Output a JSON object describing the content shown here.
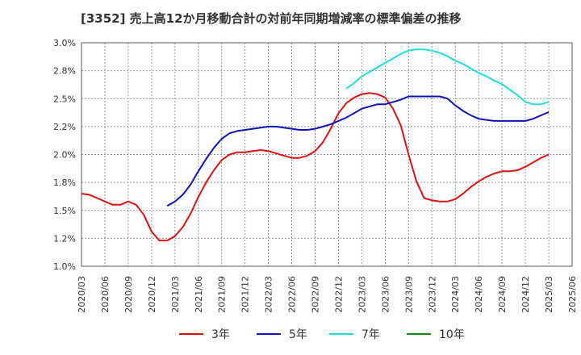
{
  "chart_data": {
    "type": "line",
    "title": "[3352]  売上高12か月移動合計の対前年同期増減率の標準偏差の推移",
    "xlabel": "",
    "ylabel": "",
    "ylim": [
      0.01,
      0.03
    ],
    "y_ticks": [
      {
        "value": 0.03,
        "label": "3.0%"
      },
      {
        "value": 0.0275,
        "label": "2.8%"
      },
      {
        "value": 0.025,
        "label": "2.5%"
      },
      {
        "value": 0.0225,
        "label": "2.2%"
      },
      {
        "value": 0.02,
        "label": "2.0%"
      },
      {
        "value": 0.0175,
        "label": "1.8%"
      },
      {
        "value": 0.015,
        "label": "1.5%"
      },
      {
        "value": 0.0125,
        "label": "1.2%"
      },
      {
        "value": 0.01,
        "label": "1.0%"
      }
    ],
    "x_ticks": [
      "2020/03",
      "2020/06",
      "2020/09",
      "2020/12",
      "2021/03",
      "2021/06",
      "2021/09",
      "2021/12",
      "2022/03",
      "2022/06",
      "2022/09",
      "2022/12",
      "2023/03",
      "2023/06",
      "2023/09",
      "2023/12",
      "2024/03",
      "2024/06",
      "2024/09",
      "2024/12",
      "2025/03",
      "2025/06"
    ],
    "x_range": [
      "2020/03",
      "2025/06"
    ],
    "grid": true,
    "legend_position": "bottom",
    "series": [
      {
        "name": "3年",
        "color": "#dd1111",
        "points": [
          [
            "2020/03",
            0.0165
          ],
          [
            "2020/04",
            0.0164
          ],
          [
            "2020/05",
            0.0161
          ],
          [
            "2020/06",
            0.0158
          ],
          [
            "2020/07",
            0.0155
          ],
          [
            "2020/08",
            0.0155
          ],
          [
            "2020/09",
            0.0158
          ],
          [
            "2020/10",
            0.0155
          ],
          [
            "2020/11",
            0.0146
          ],
          [
            "2020/12",
            0.0131
          ],
          [
            "2021/01",
            0.0123
          ],
          [
            "2021/02",
            0.0123
          ],
          [
            "2021/03",
            0.0127
          ],
          [
            "2021/04",
            0.0135
          ],
          [
            "2021/05",
            0.0147
          ],
          [
            "2021/06",
            0.0162
          ],
          [
            "2021/07",
            0.0175
          ],
          [
            "2021/08",
            0.0186
          ],
          [
            "2021/09",
            0.0195
          ],
          [
            "2021/10",
            0.02
          ],
          [
            "2021/11",
            0.0202
          ],
          [
            "2021/12",
            0.0202
          ],
          [
            "2022/01",
            0.0203
          ],
          [
            "2022/02",
            0.0204
          ],
          [
            "2022/03",
            0.0203
          ],
          [
            "2022/04",
            0.0201
          ],
          [
            "2022/05",
            0.0199
          ],
          [
            "2022/06",
            0.0197
          ],
          [
            "2022/07",
            0.0197
          ],
          [
            "2022/08",
            0.0199
          ],
          [
            "2022/09",
            0.0203
          ],
          [
            "2022/10",
            0.0211
          ],
          [
            "2022/11",
            0.0223
          ],
          [
            "2022/12",
            0.0237
          ],
          [
            "2023/01",
            0.0246
          ],
          [
            "2023/02",
            0.0251
          ],
          [
            "2023/03",
            0.0254
          ],
          [
            "2023/04",
            0.0255
          ],
          [
            "2023/05",
            0.0254
          ],
          [
            "2023/06",
            0.0251
          ],
          [
            "2023/07",
            0.0241
          ],
          [
            "2023/08",
            0.0226
          ],
          [
            "2023/09",
            0.02
          ],
          [
            "2023/10",
            0.0176
          ],
          [
            "2023/11",
            0.0161
          ],
          [
            "2023/12",
            0.0159
          ],
          [
            "2024/01",
            0.0158
          ],
          [
            "2024/02",
            0.0158
          ],
          [
            "2024/03",
            0.016
          ],
          [
            "2024/04",
            0.0165
          ],
          [
            "2024/05",
            0.0171
          ],
          [
            "2024/06",
            0.0176
          ],
          [
            "2024/07",
            0.018
          ],
          [
            "2024/08",
            0.0183
          ],
          [
            "2024/09",
            0.0185
          ],
          [
            "2024/10",
            0.0185
          ],
          [
            "2024/11",
            0.0186
          ],
          [
            "2024/12",
            0.0189
          ],
          [
            "2025/01",
            0.0193
          ],
          [
            "2025/02",
            0.0197
          ],
          [
            "2025/03",
            0.02
          ]
        ]
      },
      {
        "name": "5年",
        "color": "#1111bb",
        "points": [
          [
            "2021/02",
            0.0154
          ],
          [
            "2021/03",
            0.0158
          ],
          [
            "2021/04",
            0.0164
          ],
          [
            "2021/05",
            0.0173
          ],
          [
            "2021/06",
            0.0185
          ],
          [
            "2021/07",
            0.0196
          ],
          [
            "2021/08",
            0.0206
          ],
          [
            "2021/09",
            0.0214
          ],
          [
            "2021/10",
            0.0219
          ],
          [
            "2021/11",
            0.0221
          ],
          [
            "2021/12",
            0.0222
          ],
          [
            "2022/01",
            0.0223
          ],
          [
            "2022/02",
            0.0224
          ],
          [
            "2022/03",
            0.0225
          ],
          [
            "2022/04",
            0.0225
          ],
          [
            "2022/05",
            0.0224
          ],
          [
            "2022/06",
            0.0223
          ],
          [
            "2022/07",
            0.0222
          ],
          [
            "2022/08",
            0.0222
          ],
          [
            "2022/09",
            0.0223
          ],
          [
            "2022/10",
            0.0225
          ],
          [
            "2022/11",
            0.0227
          ],
          [
            "2022/12",
            0.023
          ],
          [
            "2023/01",
            0.0233
          ],
          [
            "2023/02",
            0.0237
          ],
          [
            "2023/03",
            0.0241
          ],
          [
            "2023/04",
            0.0243
          ],
          [
            "2023/05",
            0.0245
          ],
          [
            "2023/06",
            0.0245
          ],
          [
            "2023/07",
            0.0247
          ],
          [
            "2023/08",
            0.0249
          ],
          [
            "2023/09",
            0.0252
          ],
          [
            "2023/10",
            0.0252
          ],
          [
            "2023/11",
            0.0252
          ],
          [
            "2023/12",
            0.0252
          ],
          [
            "2024/01",
            0.0252
          ],
          [
            "2024/02",
            0.025
          ],
          [
            "2024/03",
            0.0244
          ],
          [
            "2024/04",
            0.0239
          ],
          [
            "2024/05",
            0.0235
          ],
          [
            "2024/06",
            0.0232
          ],
          [
            "2024/07",
            0.0231
          ],
          [
            "2024/08",
            0.023
          ],
          [
            "2024/09",
            0.023
          ],
          [
            "2024/10",
            0.023
          ],
          [
            "2024/11",
            0.023
          ],
          [
            "2024/12",
            0.023
          ],
          [
            "2025/01",
            0.0232
          ],
          [
            "2025/02",
            0.0235
          ],
          [
            "2025/03",
            0.0238
          ]
        ]
      },
      {
        "name": "7年",
        "color": "#22dddd",
        "points": [
          [
            "2023/01",
            0.0259
          ],
          [
            "2023/02",
            0.0264
          ],
          [
            "2023/03",
            0.027
          ],
          [
            "2023/04",
            0.0274
          ],
          [
            "2023/05",
            0.0278
          ],
          [
            "2023/06",
            0.0282
          ],
          [
            "2023/07",
            0.0286
          ],
          [
            "2023/08",
            0.029
          ],
          [
            "2023/09",
            0.0293
          ],
          [
            "2023/10",
            0.0294
          ],
          [
            "2023/11",
            0.0294
          ],
          [
            "2023/12",
            0.0293
          ],
          [
            "2024/01",
            0.0291
          ],
          [
            "2024/02",
            0.0288
          ],
          [
            "2024/03",
            0.0284
          ],
          [
            "2024/04",
            0.0281
          ],
          [
            "2024/05",
            0.0277
          ],
          [
            "2024/06",
            0.0273
          ],
          [
            "2024/07",
            0.027
          ],
          [
            "2024/08",
            0.0266
          ],
          [
            "2024/09",
            0.0263
          ],
          [
            "2024/10",
            0.0258
          ],
          [
            "2024/11",
            0.0253
          ],
          [
            "2024/12",
            0.0247
          ],
          [
            "2025/01",
            0.0245
          ],
          [
            "2025/02",
            0.0245
          ],
          [
            "2025/03",
            0.0247
          ]
        ]
      },
      {
        "name": "10年",
        "color": "#118811",
        "points": []
      }
    ]
  }
}
